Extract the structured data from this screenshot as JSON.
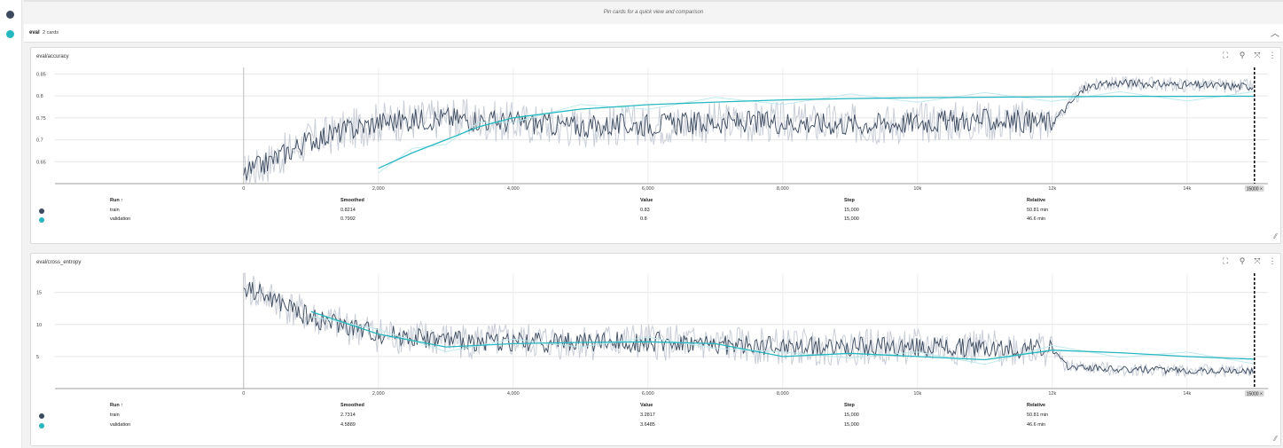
{
  "pin_message": "Pin cards for a quick view and comparison",
  "group": {
    "name": "eval",
    "count": "2 cards"
  },
  "colors": {
    "train": "#3b4a5e",
    "validation": "#26b8c0",
    "train_raw": "#c9ced8",
    "validation_raw": "#bfeaee"
  },
  "icons": {
    "fullscreen": "fullscreen-icon",
    "pin": "pin-icon",
    "fit": "fit-domain-icon",
    "more": "more-vert-icon",
    "resize": "resize-handle-icon"
  },
  "table_headers": {
    "run": "Run ↑",
    "smoothed": "Smoothed",
    "value": "Value",
    "step": "Step",
    "relative": "Relative"
  },
  "cards": [
    {
      "title": "eval/accuracy",
      "rows": [
        {
          "run": "train",
          "smoothed": "0.8214",
          "value": "0.83",
          "step": "15,000",
          "relative": "50.81 min"
        },
        {
          "run": "validation",
          "smoothed": "0.7992",
          "value": "0.8",
          "step": "15,000",
          "relative": "46.6 min"
        }
      ]
    },
    {
      "title": "eval/cross_entropy",
      "rows": [
        {
          "run": "train",
          "smoothed": "2.7314",
          "value": "3.2817",
          "step": "15,000",
          "relative": "50.81 min"
        },
        {
          "run": "validation",
          "smoothed": "4.5889",
          "value": "3.6485",
          "step": "15,000",
          "relative": "46.6 min"
        }
      ]
    }
  ],
  "chart_data": [
    {
      "type": "line",
      "x_tick_labels": [
        "0",
        "2,000",
        "4,000",
        "6,000",
        "8,000",
        "10k",
        "12k",
        "14k"
      ],
      "y_tick_labels": [
        "0.65",
        "0.7",
        "0.75",
        "0.8",
        "0.85"
      ],
      "xlim": [
        -2800,
        15200
      ],
      "ylim": [
        0.6,
        0.865
      ],
      "step_marker": "15000 ×",
      "series": [
        {
          "name": "validation",
          "x": [
            2000,
            2500,
            3000,
            3500,
            4000,
            5000,
            6000,
            7000,
            8000,
            9000,
            10000,
            11000,
            12000,
            13000,
            14000,
            15000
          ],
          "y": [
            0.635,
            0.67,
            0.7,
            0.73,
            0.75,
            0.77,
            0.78,
            0.786,
            0.791,
            0.794,
            0.796,
            0.797,
            0.798,
            0.799,
            0.799,
            0.7992
          ]
        },
        {
          "name": "train",
          "x": [
            0,
            1000,
            2000,
            3000,
            4000,
            5000,
            6000,
            7000,
            8000,
            9000,
            10000,
            11000,
            12000,
            12500,
            13000,
            14000,
            15000
          ],
          "y": [
            0.62,
            0.7,
            0.74,
            0.75,
            0.74,
            0.73,
            0.735,
            0.74,
            0.74,
            0.735,
            0.74,
            0.745,
            0.74,
            0.82,
            0.83,
            0.825,
            0.8214
          ]
        }
      ]
    },
    {
      "type": "line",
      "x_tick_labels": [
        "0",
        "2,000",
        "4,000",
        "6,000",
        "8,000",
        "10k",
        "12k",
        "14k"
      ],
      "y_tick_labels": [
        "5",
        "10",
        "15"
      ],
      "xlim": [
        -2800,
        15200
      ],
      "ylim": [
        0,
        18
      ],
      "step_marker": "15000 ×",
      "series": [
        {
          "name": "validation",
          "x": [
            1000,
            2000,
            3000,
            4000,
            5000,
            6000,
            7000,
            8000,
            9000,
            10000,
            11000,
            12000,
            13000,
            14000,
            15000
          ],
          "y": [
            12,
            8.5,
            6.5,
            7.0,
            7.2,
            7.3,
            7.0,
            5.0,
            5.5,
            5.0,
            4.5,
            6.0,
            5.6,
            5.0,
            4.5889
          ]
        },
        {
          "name": "train",
          "x": [
            0,
            1000,
            2000,
            3000,
            4000,
            5000,
            6000,
            7000,
            8000,
            9000,
            10000,
            11000,
            12000,
            12200,
            13000,
            14000,
            15000
          ],
          "y": [
            16,
            11,
            8.5,
            7.5,
            7.3,
            7.3,
            7.3,
            6.8,
            6.5,
            6.5,
            6.5,
            6.3,
            6.2,
            3.5,
            3.0,
            2.8,
            2.7314
          ]
        }
      ]
    }
  ]
}
